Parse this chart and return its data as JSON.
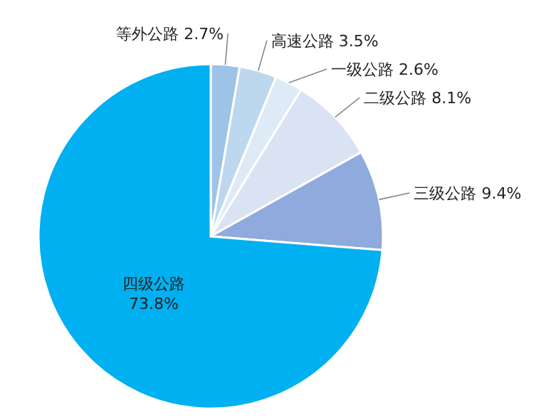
{
  "chart_data": {
    "type": "pie",
    "categories": [
      "等外公路",
      "高速公路",
      "一级公路",
      "二级公路",
      "三级公路",
      "四级公路"
    ],
    "values": [
      2.7,
      3.5,
      2.6,
      8.1,
      9.4,
      73.8
    ],
    "value_labels": [
      "2.7%",
      "3.5%",
      "2.6%",
      "8.1%",
      "9.4%",
      "73.8%"
    ],
    "colors": [
      "#9dc3e6",
      "#bdd7ee",
      "#deebf7",
      "#dae3f3",
      "#8faadc",
      "#00b0f0"
    ]
  }
}
